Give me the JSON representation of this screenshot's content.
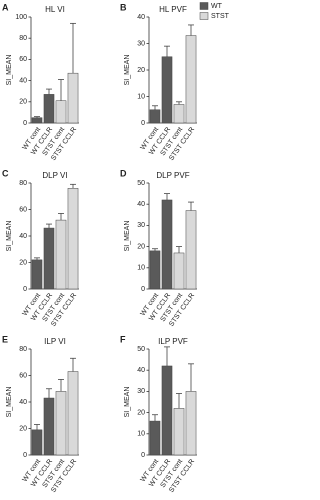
{
  "chart_data": [
    {
      "type": "bar",
      "panel": "A",
      "title": "HL VI",
      "ylabel": "SI_MEAN",
      "categories": [
        "WT cont",
        "WT CCLR",
        "STST cont",
        "STST CCLR"
      ],
      "values": [
        5,
        27,
        21,
        47
      ],
      "errors": [
        1,
        5,
        20,
        47
      ],
      "colors": [
        "#5a5a5a",
        "#5a5a5a",
        "#d9d9d9",
        "#d9d9d9"
      ],
      "ylim": [
        0,
        100
      ],
      "yticks": [
        0,
        20,
        40,
        60,
        80,
        100
      ]
    },
    {
      "type": "bar",
      "panel": "B",
      "title": "HL PVF",
      "ylabel": "SI_MEAN",
      "categories": [
        "WT cont",
        "WT CCLR",
        "STST cont",
        "STST CCLR"
      ],
      "values": [
        5,
        25,
        7,
        33
      ],
      "errors": [
        1.5,
        4,
        1,
        4
      ],
      "colors": [
        "#5a5a5a",
        "#5a5a5a",
        "#d9d9d9",
        "#d9d9d9"
      ],
      "ylim": [
        0,
        40
      ],
      "yticks": [
        0,
        10,
        20,
        30,
        40
      ],
      "legend": [
        {
          "name": "WT",
          "color": "#5a5a5a"
        },
        {
          "name": "STST",
          "color": "#d9d9d9"
        }
      ]
    },
    {
      "type": "bar",
      "panel": "C",
      "title": "DLP VI",
      "ylabel": "SI_MEAN",
      "categories": [
        "WT cont",
        "WT CCLR",
        "STST cont",
        "STST CCLR"
      ],
      "values": [
        22,
        46,
        52,
        76
      ],
      "errors": [
        1.5,
        3,
        5,
        3
      ],
      "colors": [
        "#5a5a5a",
        "#5a5a5a",
        "#d9d9d9",
        "#d9d9d9"
      ],
      "ylim": [
        0,
        80
      ],
      "yticks": [
        0,
        20,
        40,
        60,
        80
      ]
    },
    {
      "type": "bar",
      "panel": "D",
      "title": "DLP PVF",
      "ylabel": "SI_MEAN",
      "categories": [
        "WT cont",
        "WT CCLR",
        "STST cont",
        "STST CCLR"
      ],
      "values": [
        18,
        42,
        17,
        37
      ],
      "errors": [
        1,
        3,
        3,
        4
      ],
      "colors": [
        "#5a5a5a",
        "#5a5a5a",
        "#d9d9d9",
        "#d9d9d9"
      ],
      "ylim": [
        0,
        50
      ],
      "yticks": [
        0,
        10,
        20,
        30,
        40,
        50
      ]
    },
    {
      "type": "bar",
      "panel": "E",
      "title": "ILP VI",
      "ylabel": "SI_MEAN",
      "categories": [
        "WT cont",
        "WT CCLR",
        "STST cont",
        "STST CCLR"
      ],
      "values": [
        19,
        43,
        48,
        63
      ],
      "errors": [
        4,
        7,
        9,
        10
      ],
      "colors": [
        "#5a5a5a",
        "#5a5a5a",
        "#d9d9d9",
        "#d9d9d9"
      ],
      "ylim": [
        0,
        80
      ],
      "yticks": [
        0,
        20,
        40,
        60,
        80
      ]
    },
    {
      "type": "bar",
      "panel": "F",
      "title": "ILP PVF",
      "ylabel": "SI_MEAN",
      "categories": [
        "WT cont",
        "WT CCLR",
        "STST cont",
        "STST CCLR"
      ],
      "values": [
        16,
        42,
        22,
        30
      ],
      "errors": [
        3,
        9,
        7,
        13
      ],
      "colors": [
        "#5a5a5a",
        "#5a5a5a",
        "#d9d9d9",
        "#d9d9d9"
      ],
      "ylim": [
        0,
        50
      ],
      "yticks": [
        0,
        10,
        20,
        30,
        40,
        50
      ]
    }
  ]
}
